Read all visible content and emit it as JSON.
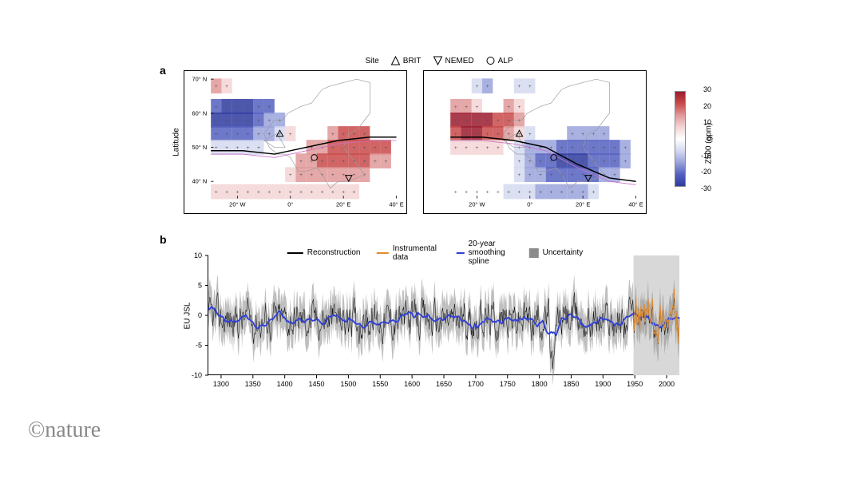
{
  "panels": {
    "a_label": "a",
    "b_label": "b"
  },
  "site_legend": {
    "title": "Site",
    "items": [
      {
        "label": "BRIT",
        "shape": "triangle-up"
      },
      {
        "label": "NEMED",
        "shape": "triangle-down"
      },
      {
        "label": "ALP",
        "shape": "circle"
      }
    ]
  },
  "maps": {
    "ylabel": "Latitude",
    "xticks": [
      "20° W",
      "0°",
      "20° E",
      "40° E"
    ],
    "yticks": [
      "70° N",
      "60° N",
      "50° N",
      "40° N"
    ],
    "grid_extent": {
      "lon_min": -30,
      "lon_max": 40,
      "lat_min": 35,
      "lat_max": 70
    },
    "jet_line_color": "#000000",
    "jet_line2_color": "#c971c9",
    "coastline_color": "#9a9a9a",
    "left": {
      "jet_lat": [
        49,
        49,
        48,
        50,
        52,
        53,
        53
      ],
      "field_colors_hint": "northwest_blue_southeast_red",
      "cells": [
        {
          "lon": -28,
          "lat": 68,
          "v": 15
        },
        {
          "lon": -24,
          "lat": 68,
          "v": 10
        },
        {
          "lon": -28,
          "lat": 62,
          "v": -25
        },
        {
          "lon": -24,
          "lat": 62,
          "v": -28
        },
        {
          "lon": -20,
          "lat": 62,
          "v": -30
        },
        {
          "lon": -16,
          "lat": 62,
          "v": -28
        },
        {
          "lon": -12,
          "lat": 62,
          "v": -25
        },
        {
          "lon": -8,
          "lat": 62,
          "v": -20
        },
        {
          "lon": -28,
          "lat": 58,
          "v": -28
        },
        {
          "lon": -24,
          "lat": 58,
          "v": -30
        },
        {
          "lon": -20,
          "lat": 58,
          "v": -30
        },
        {
          "lon": -16,
          "lat": 58,
          "v": -28
        },
        {
          "lon": -12,
          "lat": 58,
          "v": -25
        },
        {
          "lon": -8,
          "lat": 58,
          "v": -18
        },
        {
          "lon": -4,
          "lat": 58,
          "v": -12
        },
        {
          "lon": -28,
          "lat": 54,
          "v": -22
        },
        {
          "lon": -24,
          "lat": 54,
          "v": -25
        },
        {
          "lon": -20,
          "lat": 54,
          "v": -25
        },
        {
          "lon": -16,
          "lat": 54,
          "v": -22
        },
        {
          "lon": -12,
          "lat": 54,
          "v": -18
        },
        {
          "lon": -8,
          "lat": 54,
          "v": -12
        },
        {
          "lon": -4,
          "lat": 54,
          "v": -5
        },
        {
          "lon": 0,
          "lat": 54,
          "v": 5
        },
        {
          "lon": 16,
          "lat": 54,
          "v": 15
        },
        {
          "lon": 20,
          "lat": 54,
          "v": 20
        },
        {
          "lon": 24,
          "lat": 54,
          "v": 22
        },
        {
          "lon": 28,
          "lat": 54,
          "v": 22
        },
        {
          "lon": -28,
          "lat": 50,
          "v": -8
        },
        {
          "lon": -24,
          "lat": 50,
          "v": -10
        },
        {
          "lon": -20,
          "lat": 50,
          "v": -10
        },
        {
          "lon": -16,
          "lat": 50,
          "v": -8
        },
        {
          "lon": -12,
          "lat": 50,
          "v": -5
        },
        {
          "lon": 8,
          "lat": 50,
          "v": 12
        },
        {
          "lon": 12,
          "lat": 50,
          "v": 18
        },
        {
          "lon": 16,
          "lat": 50,
          "v": 22
        },
        {
          "lon": 20,
          "lat": 50,
          "v": 25
        },
        {
          "lon": 24,
          "lat": 50,
          "v": 25
        },
        {
          "lon": 28,
          "lat": 50,
          "v": 25
        },
        {
          "lon": 32,
          "lat": 50,
          "v": 22
        },
        {
          "lon": 36,
          "lat": 50,
          "v": 20
        },
        {
          "lon": 4,
          "lat": 46,
          "v": 12
        },
        {
          "lon": 8,
          "lat": 46,
          "v": 18
        },
        {
          "lon": 12,
          "lat": 46,
          "v": 22
        },
        {
          "lon": 16,
          "lat": 46,
          "v": 25
        },
        {
          "lon": 20,
          "lat": 46,
          "v": 25
        },
        {
          "lon": 24,
          "lat": 46,
          "v": 22
        },
        {
          "lon": 28,
          "lat": 46,
          "v": 20
        },
        {
          "lon": 32,
          "lat": 46,
          "v": 18
        },
        {
          "lon": 36,
          "lat": 46,
          "v": 15
        },
        {
          "lon": 0,
          "lat": 42,
          "v": 8
        },
        {
          "lon": 4,
          "lat": 42,
          "v": 12
        },
        {
          "lon": 8,
          "lat": 42,
          "v": 15
        },
        {
          "lon": 12,
          "lat": 42,
          "v": 18
        },
        {
          "lon": 16,
          "lat": 42,
          "v": 18
        },
        {
          "lon": 20,
          "lat": 42,
          "v": 18
        },
        {
          "lon": 24,
          "lat": 42,
          "v": 15
        },
        {
          "lon": 28,
          "lat": 42,
          "v": 12
        },
        {
          "lon": -28,
          "lat": 37,
          "v": 5
        },
        {
          "lon": -24,
          "lat": 37,
          "v": 5
        },
        {
          "lon": -20,
          "lat": 37,
          "v": 5
        },
        {
          "lon": -16,
          "lat": 37,
          "v": 5
        },
        {
          "lon": -12,
          "lat": 37,
          "v": 5
        },
        {
          "lon": -8,
          "lat": 37,
          "v": 5
        },
        {
          "lon": -4,
          "lat": 37,
          "v": 5
        },
        {
          "lon": 0,
          "lat": 37,
          "v": 5
        },
        {
          "lon": 4,
          "lat": 37,
          "v": 8
        },
        {
          "lon": 8,
          "lat": 37,
          "v": 8
        },
        {
          "lon": 12,
          "lat": 37,
          "v": 10
        },
        {
          "lon": 16,
          "lat": 37,
          "v": 10
        },
        {
          "lon": 20,
          "lat": 37,
          "v": 8
        },
        {
          "lon": 24,
          "lat": 37,
          "v": 5
        }
      ]
    },
    "right": {
      "jet_lat": [
        53,
        53,
        52,
        50,
        45,
        41,
        40
      ],
      "cells": [
        {
          "lon": -20,
          "lat": 68,
          "v": -10
        },
        {
          "lon": -16,
          "lat": 68,
          "v": -12
        },
        {
          "lon": -4,
          "lat": 68,
          "v": -10
        },
        {
          "lon": 0,
          "lat": 68,
          "v": -8
        },
        {
          "lon": -28,
          "lat": 62,
          "v": 18
        },
        {
          "lon": -24,
          "lat": 62,
          "v": 15
        },
        {
          "lon": -20,
          "lat": 62,
          "v": 10
        },
        {
          "lon": -8,
          "lat": 62,
          "v": 12
        },
        {
          "lon": -4,
          "lat": 62,
          "v": 10
        },
        {
          "lon": -28,
          "lat": 58,
          "v": 28
        },
        {
          "lon": -24,
          "lat": 58,
          "v": 30
        },
        {
          "lon": -20,
          "lat": 58,
          "v": 30
        },
        {
          "lon": -16,
          "lat": 58,
          "v": 28
        },
        {
          "lon": -12,
          "lat": 58,
          "v": 25
        },
        {
          "lon": -8,
          "lat": 58,
          "v": 20
        },
        {
          "lon": -4,
          "lat": 58,
          "v": 12
        },
        {
          "lon": -28,
          "lat": 54,
          "v": 25
        },
        {
          "lon": -24,
          "lat": 54,
          "v": 28
        },
        {
          "lon": -20,
          "lat": 54,
          "v": 28
        },
        {
          "lon": -16,
          "lat": 54,
          "v": 25
        },
        {
          "lon": -12,
          "lat": 54,
          "v": 20
        },
        {
          "lon": -8,
          "lat": 54,
          "v": 12
        },
        {
          "lon": -4,
          "lat": 54,
          "v": 5
        },
        {
          "lon": 0,
          "lat": 54,
          "v": -5
        },
        {
          "lon": 16,
          "lat": 54,
          "v": -12
        },
        {
          "lon": 20,
          "lat": 54,
          "v": -15
        },
        {
          "lon": 24,
          "lat": 54,
          "v": -15
        },
        {
          "lon": 28,
          "lat": 54,
          "v": -15
        },
        {
          "lon": -28,
          "lat": 50,
          "v": 8
        },
        {
          "lon": -24,
          "lat": 50,
          "v": 10
        },
        {
          "lon": -20,
          "lat": 50,
          "v": 10
        },
        {
          "lon": -16,
          "lat": 50,
          "v": 8
        },
        {
          "lon": -12,
          "lat": 50,
          "v": 5
        },
        {
          "lon": -4,
          "lat": 50,
          "v": -8
        },
        {
          "lon": 0,
          "lat": 50,
          "v": -12
        },
        {
          "lon": 4,
          "lat": 50,
          "v": -15
        },
        {
          "lon": 8,
          "lat": 50,
          "v": -18
        },
        {
          "lon": 12,
          "lat": 50,
          "v": -22
        },
        {
          "lon": 16,
          "lat": 50,
          "v": -25
        },
        {
          "lon": 20,
          "lat": 50,
          "v": -25
        },
        {
          "lon": 24,
          "lat": 50,
          "v": -25
        },
        {
          "lon": 28,
          "lat": 50,
          "v": -22
        },
        {
          "lon": 32,
          "lat": 50,
          "v": -20
        },
        {
          "lon": 36,
          "lat": 50,
          "v": -18
        },
        {
          "lon": -4,
          "lat": 46,
          "v": -10
        },
        {
          "lon": 0,
          "lat": 46,
          "v": -15
        },
        {
          "lon": 4,
          "lat": 46,
          "v": -20
        },
        {
          "lon": 8,
          "lat": 46,
          "v": -25
        },
        {
          "lon": 12,
          "lat": 46,
          "v": -28
        },
        {
          "lon": 16,
          "lat": 46,
          "v": -28
        },
        {
          "lon": 20,
          "lat": 46,
          "v": -28
        },
        {
          "lon": 24,
          "lat": 46,
          "v": -25
        },
        {
          "lon": 28,
          "lat": 46,
          "v": -22
        },
        {
          "lon": 32,
          "lat": 46,
          "v": -20
        },
        {
          "lon": 36,
          "lat": 46,
          "v": -18
        },
        {
          "lon": -4,
          "lat": 42,
          "v": -8
        },
        {
          "lon": 0,
          "lat": 42,
          "v": -12
        },
        {
          "lon": 4,
          "lat": 42,
          "v": -18
        },
        {
          "lon": 8,
          "lat": 42,
          "v": -22
        },
        {
          "lon": 12,
          "lat": 42,
          "v": -25
        },
        {
          "lon": 16,
          "lat": 42,
          "v": -25
        },
        {
          "lon": 20,
          "lat": 42,
          "v": -22
        },
        {
          "lon": 24,
          "lat": 42,
          "v": -20
        },
        {
          "lon": 28,
          "lat": 42,
          "v": -15
        },
        {
          "lon": 32,
          "lat": 42,
          "v": -12
        },
        {
          "lon": -28,
          "lat": 37,
          "v": -3
        },
        {
          "lon": -24,
          "lat": 37,
          "v": -3
        },
        {
          "lon": -20,
          "lat": 37,
          "v": -3
        },
        {
          "lon": -16,
          "lat": 37,
          "v": -3
        },
        {
          "lon": -12,
          "lat": 37,
          "v": -3
        },
        {
          "lon": -8,
          "lat": 37,
          "v": -5
        },
        {
          "lon": -4,
          "lat": 37,
          "v": -5
        },
        {
          "lon": 0,
          "lat": 37,
          "v": -8
        },
        {
          "lon": 4,
          "lat": 37,
          "v": -12
        },
        {
          "lon": 8,
          "lat": 37,
          "v": -15
        },
        {
          "lon": 12,
          "lat": 37,
          "v": -15
        },
        {
          "lon": 16,
          "lat": 37,
          "v": -15
        },
        {
          "lon": 20,
          "lat": 37,
          "v": -12
        },
        {
          "lon": 24,
          "lat": 37,
          "v": -10
        }
      ]
    },
    "sites": [
      {
        "name": "BRIT",
        "shape": "triangle-up",
        "lon": -4,
        "lat": 54
      },
      {
        "name": "ALP",
        "shape": "circle",
        "lon": 9,
        "lat": 47
      },
      {
        "name": "NEMED",
        "shape": "triangle-down",
        "lon": 22,
        "lat": 41
      }
    ],
    "colorbar": {
      "label": "Z500 (gpm)",
      "ticks": [
        30,
        20,
        10,
        0,
        -10,
        -20,
        -30
      ],
      "gradient": [
        "#9b1b2e",
        "#c94a4a",
        "#e19999",
        "#f3d5d5",
        "#ffffff",
        "#d5d9f0",
        "#9aa3dc",
        "#5560c0",
        "#2e3a9e"
      ]
    }
  },
  "timeseries": {
    "ylabel": "EU JSL",
    "ylim": [
      -10,
      10
    ],
    "yticks": [
      -10,
      -5,
      0,
      5,
      10
    ],
    "xlim": [
      1280,
      2020
    ],
    "xticks": [
      1300,
      1350,
      1400,
      1450,
      1500,
      1550,
      1600,
      1650,
      1700,
      1750,
      1800,
      1850,
      1900,
      1950,
      2000
    ],
    "legend": [
      {
        "label": "Reconstruction",
        "type": "line",
        "color": "#000000"
      },
      {
        "label": "Instrumental data",
        "type": "line",
        "color": "#e08a2c"
      },
      {
        "label": "20-year smoothing spline",
        "type": "line",
        "color": "#2e3fd6"
      },
      {
        "label": "Uncertainty",
        "type": "box",
        "color": "#8a8a8a"
      }
    ],
    "uncertainty_color": "#8a8a8a",
    "recent_box": {
      "start": 1948,
      "end": 2020,
      "color": "#d8d8d8"
    },
    "seed": 42
  },
  "copyright": "©nature"
}
